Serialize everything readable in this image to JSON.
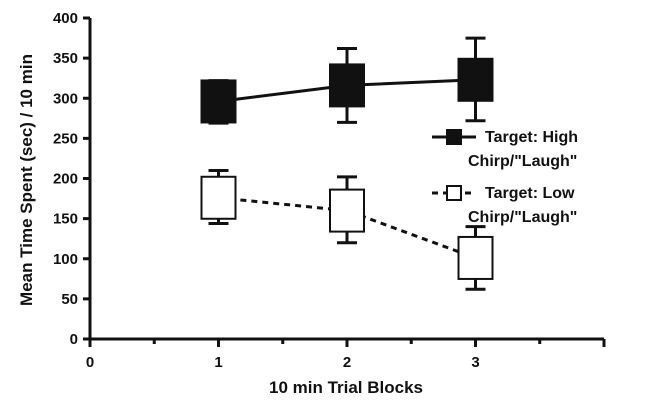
{
  "chart_data": {
    "type": "line",
    "title": "",
    "xlabel": "10 min Trial Blocks",
    "ylabel": "Mean Time Spent (sec) / 10 min",
    "xlim": [
      0,
      4
    ],
    "ylim": [
      0,
      400
    ],
    "x_ticks": [
      0,
      1,
      2,
      3
    ],
    "y_ticks": [
      0,
      50,
      100,
      150,
      200,
      250,
      300,
      350,
      400
    ],
    "grid": false,
    "legend_position": "right",
    "x": [
      1,
      2,
      3
    ],
    "series": [
      {
        "name_lines": [
          "Target: High",
          "Chirp/\"Laugh\""
        ],
        "values": [
          296,
          316,
          323
        ],
        "error_low": [
          269,
          270,
          272
        ],
        "error_high": [
          322,
          362,
          375
        ],
        "marker": "filled-square",
        "line_style": "solid",
        "color": "#111111"
      },
      {
        "name_lines": [
          "Target: Low",
          "Chirp/\"Laugh\""
        ],
        "values": [
          176,
          160,
          101
        ],
        "error_low": [
          144,
          120,
          62
        ],
        "error_high": [
          210,
          202,
          140
        ],
        "marker": "open-square",
        "line_style": "dashed",
        "color": "#111111"
      }
    ]
  }
}
